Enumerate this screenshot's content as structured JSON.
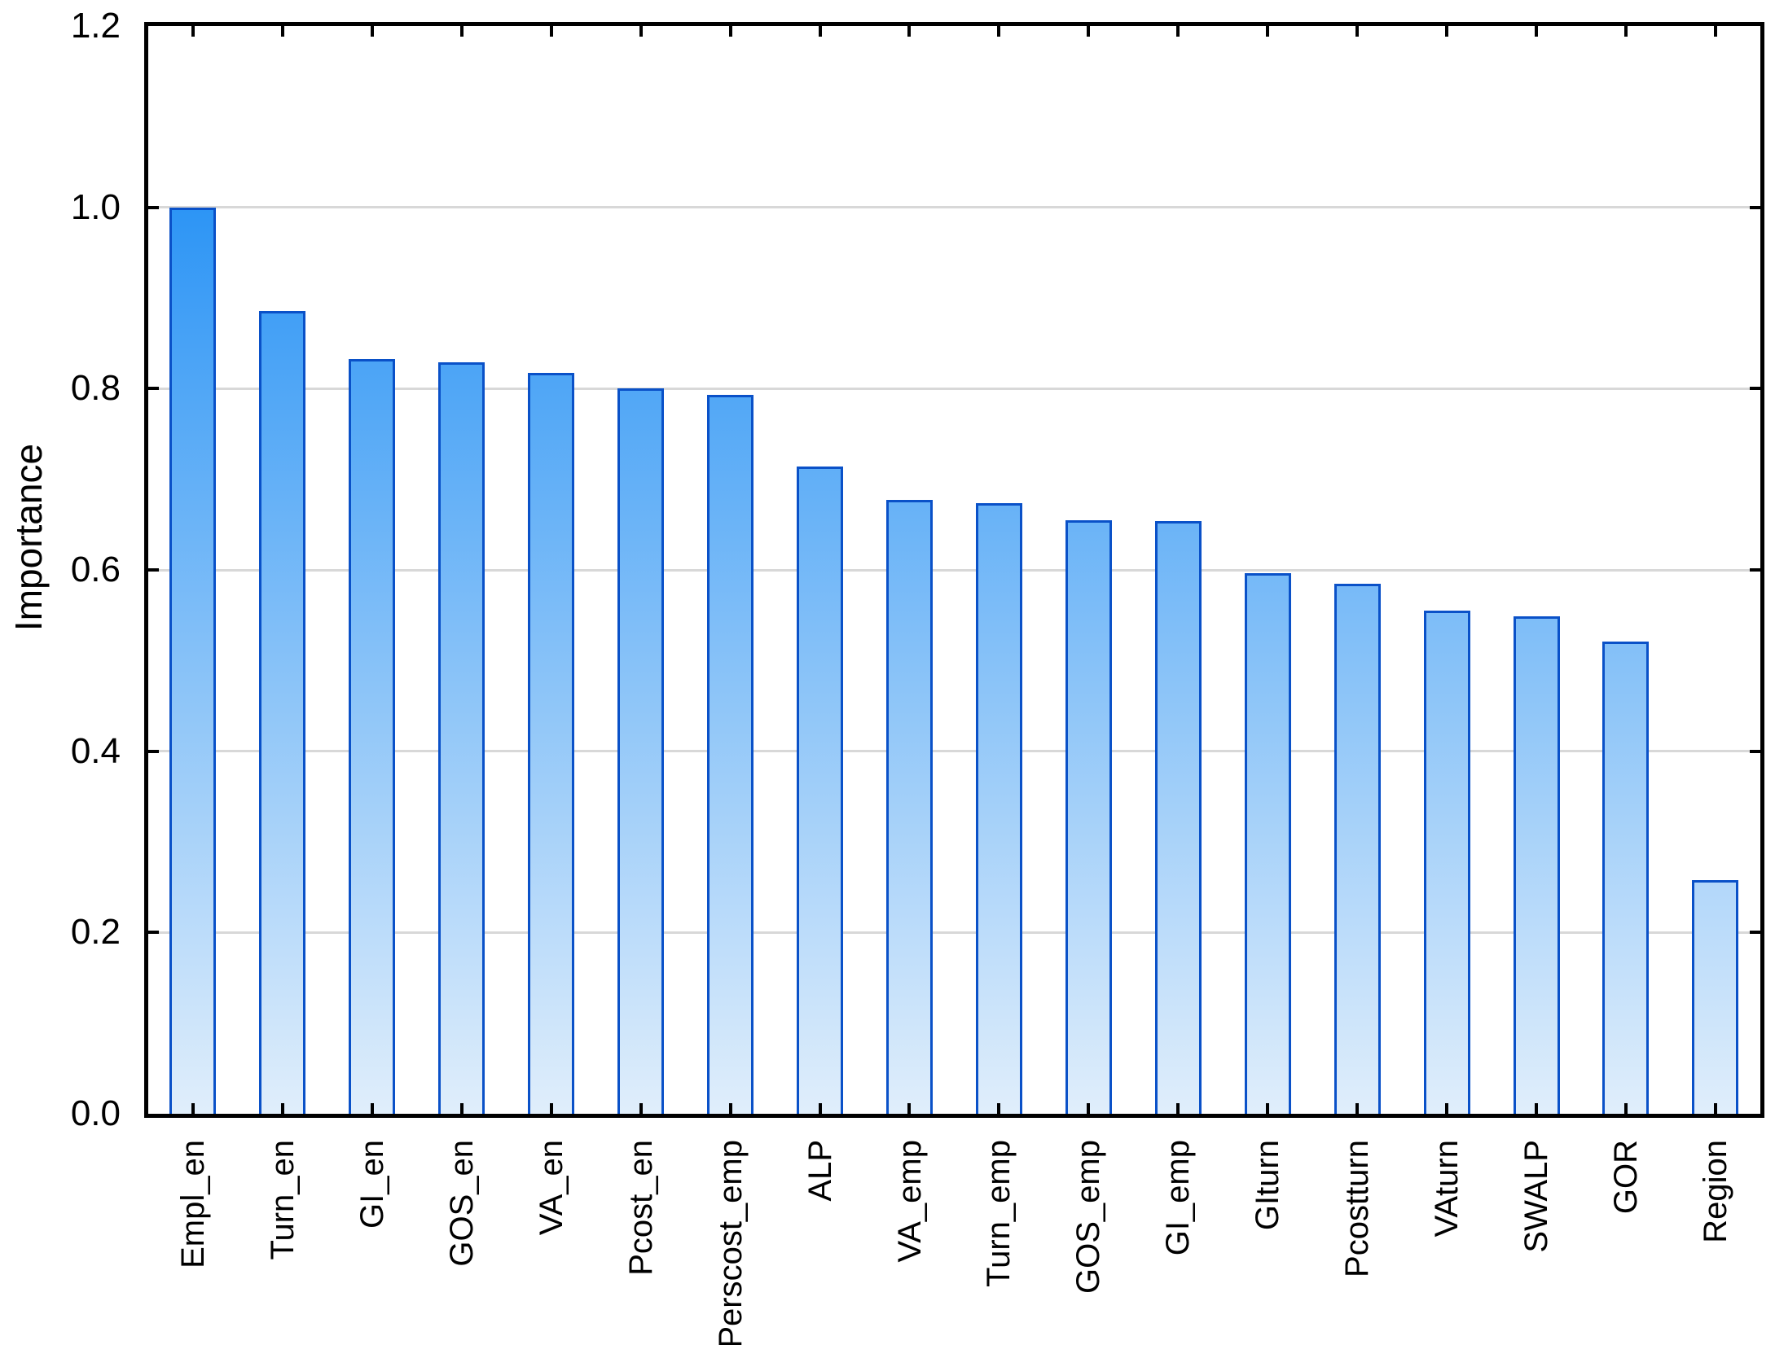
{
  "chart_data": {
    "type": "bar",
    "title": "",
    "xlabel": "",
    "ylabel": "Importance",
    "ylim": [
      0,
      1.2
    ],
    "ytick_labels": [
      "0.0",
      "0.2",
      "0.4",
      "0.6",
      "0.8",
      "1.0",
      "1.2"
    ],
    "ytick_values": [
      0,
      0.2,
      0.4,
      0.6,
      0.8,
      1.0,
      1.2
    ],
    "gridlines": [
      0.2,
      0.4,
      0.6,
      0.8,
      1.0
    ],
    "grid": "horizontal",
    "legend": "none",
    "categories": [
      "Empl_en",
      "Turn_en",
      "GI_en",
      "GOS_en",
      "VA_en",
      "Pcost_en",
      "Perscost_emp",
      "ALP",
      "VA_emp",
      "Turn_emp",
      "GOS_emp",
      "GI_emp",
      "GIturn",
      "Pcostturn",
      "VAturn",
      "SWALP",
      "GOR",
      "Region"
    ],
    "values": [
      1.0,
      0.886,
      0.833,
      0.829,
      0.817,
      0.8,
      0.793,
      0.714,
      0.677,
      0.674,
      0.655,
      0.654,
      0.596,
      0.585,
      0.555,
      0.549,
      0.521,
      0.258
    ],
    "colors": {
      "bar_gradient_top": "#2d95f5",
      "bar_gradient_bottom": "#e0eefb",
      "bar_border": "#0a51c8",
      "gridline": "#d8d8d8",
      "frame": "#000000",
      "text": "#000000"
    }
  }
}
